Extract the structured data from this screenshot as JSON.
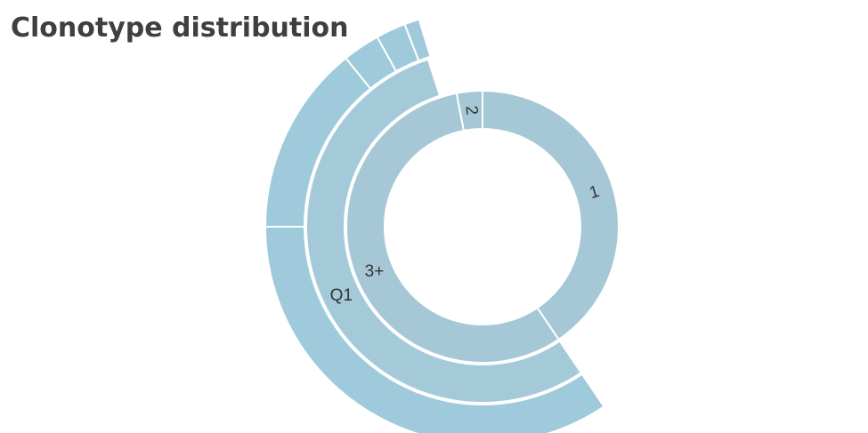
{
  "title": "Clonotype distribution",
  "chart_data": {
    "type": "sunburst",
    "title": "Clonotype distribution",
    "colors": {
      "ring1": "#a6c8d6",
      "ring2": "#a4cad9",
      "ring3": "#9fcadb",
      "stroke": "#ffffff",
      "label": "#333333"
    },
    "rings": [
      {
        "level": 1,
        "segments": [
          {
            "label": "1",
            "angle_start": 0,
            "angle_end": 146
          },
          {
            "label": "3+",
            "angle_start": 146,
            "angle_end": 349
          },
          {
            "label": "2",
            "angle_start": 349,
            "angle_end": 360
          }
        ]
      },
      {
        "level": 2,
        "parent": "3+",
        "segments": [
          {
            "label": "Q1",
            "angle_start": 146,
            "angle_end": 342
          }
        ]
      },
      {
        "level": 3,
        "parent": "Q1",
        "segments": [
          {
            "label": "",
            "angle_start": 146,
            "angle_end": 270
          },
          {
            "label": "",
            "angle_start": 270,
            "angle_end": 321
          },
          {
            "label": "",
            "angle_start": 321,
            "angle_end": 331
          },
          {
            "label": "",
            "angle_start": 331,
            "angle_end": 339
          },
          {
            "label": "",
            "angle_start": 339,
            "angle_end": 343
          }
        ]
      }
    ]
  }
}
